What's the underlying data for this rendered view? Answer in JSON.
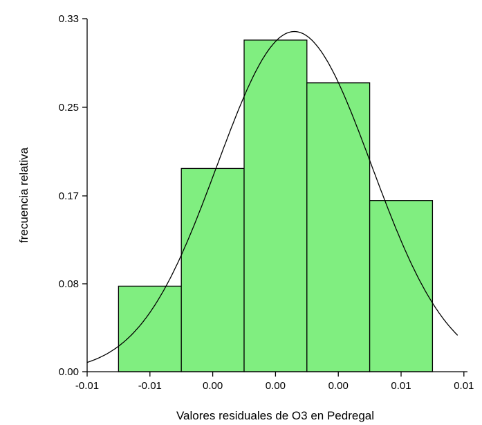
{
  "chart_data": {
    "type": "bar",
    "subtype": "histogram-with-normal-curve",
    "title": "",
    "xlabel": "Valores residuales de O3 en Pedregal",
    "ylabel": "frecuencia relativa",
    "ylim": [
      0,
      0.33
    ],
    "y_ticks": [
      "0.00",
      "0.08",
      "0.17",
      "0.25",
      "0.33"
    ],
    "x_ticks": [
      "-0.01",
      "-0.01",
      "0.00",
      "0.00",
      "0.00",
      "0.01",
      "0.01"
    ],
    "bins": [
      {
        "index": 1,
        "value": 0.08
      },
      {
        "index": 2,
        "value": 0.19
      },
      {
        "index": 3,
        "value": 0.31
      },
      {
        "index": 4,
        "value": 0.27
      },
      {
        "index": 5,
        "value": 0.16
      }
    ],
    "normal_curve": {
      "peak_bin": 3.3,
      "sd_bins": 1.23,
      "peak_value": 0.318
    },
    "bar_color": "#80ee80",
    "curve_color": "#000000",
    "grid": false,
    "legend": "none"
  }
}
